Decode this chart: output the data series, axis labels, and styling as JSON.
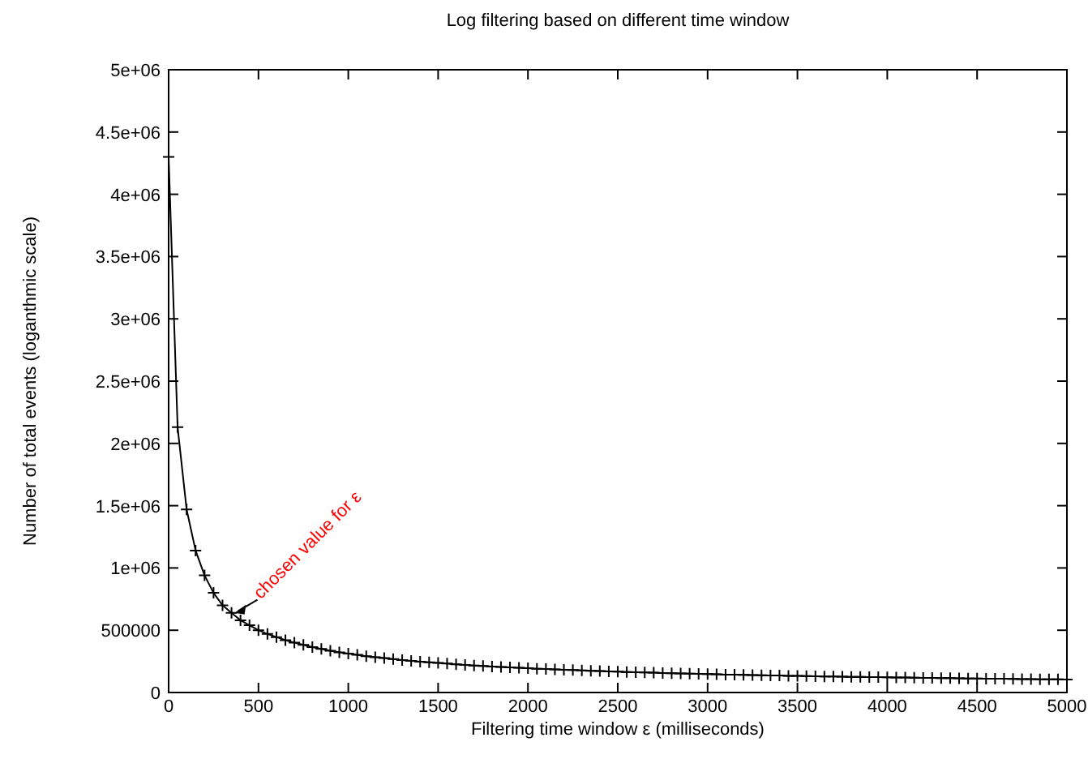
{
  "chart_data": {
    "type": "line",
    "title": "Log filtering based on different time window",
    "xlabel": "Filtering time window ε  (milliseconds)",
    "ylabel": "Number of total events (loganthmic scale)",
    "x": [
      0,
      50,
      100,
      150,
      200,
      250,
      300,
      350,
      400,
      450,
      500,
      550,
      600,
      650,
      700,
      750,
      800,
      850,
      900,
      950,
      1000,
      1050,
      1100,
      1150,
      1200,
      1250,
      1300,
      1350,
      1400,
      1450,
      1500,
      1550,
      1600,
      1650,
      1700,
      1750,
      1800,
      1850,
      1900,
      1950,
      2000,
      2050,
      2100,
      2150,
      2200,
      2250,
      2300,
      2350,
      2400,
      2450,
      2500,
      2550,
      2600,
      2650,
      2700,
      2750,
      2800,
      2850,
      2900,
      2950,
      3000,
      3050,
      3100,
      3150,
      3200,
      3250,
      3300,
      3350,
      3400,
      3450,
      3500,
      3550,
      3600,
      3650,
      3700,
      3750,
      3800,
      3850,
      3900,
      3950,
      4000,
      4050,
      4100,
      4150,
      4200,
      4250,
      4300,
      4350,
      4400,
      4450,
      4500,
      4550,
      4600,
      4650,
      4700,
      4750,
      4800,
      4850,
      4900,
      4950,
      5000
    ],
    "series": [
      {
        "color": "#000000",
        "values": [
          4300000,
          2130000,
          1470000,
          1140000,
          940000,
          800000,
          700000,
          640000,
          580000,
          540000,
          500000,
          470000,
          445000,
          420000,
          400000,
          382000,
          365000,
          350000,
          335000,
          323000,
          312000,
          302000,
          292000,
          284000,
          276000,
          268000,
          261000,
          254000,
          248000,
          242000,
          237000,
          232000,
          227000,
          222000,
          217000,
          213000,
          209000,
          205000,
          202000,
          198000,
          195000,
          191000,
          188000,
          185000,
          182000,
          180000,
          177000,
          174000,
          172000,
          169000,
          167000,
          165000,
          163000,
          161000,
          159000,
          157000,
          155000,
          153000,
          151000,
          150000,
          148000,
          146000,
          144000,
          143000,
          141000,
          140000,
          139000,
          137000,
          136000,
          134000,
          133000,
          132000,
          131000,
          129000,
          128000,
          127000,
          126000,
          125000,
          124000,
          123000,
          122000,
          121000,
          120000,
          119000,
          118000,
          117000,
          116000,
          115000,
          114000,
          113000,
          112000,
          111000,
          110000,
          110000,
          109000,
          108000,
          107000,
          106000,
          105000,
          105000,
          104000
        ]
      }
    ],
    "xlim": [
      0,
      5000
    ],
    "xticks": [
      0,
      500,
      1000,
      1500,
      2000,
      2500,
      3000,
      3500,
      4000,
      4500,
      5000
    ],
    "ylim": [
      0,
      5000000
    ],
    "yticks": [
      0,
      500000,
      {
        "value": 1000000,
        "label": "1e+06"
      },
      {
        "value": 1500000,
        "label": "1.5e+06"
      },
      {
        "value": 2000000,
        "label": "2e+06"
      },
      {
        "value": 2500000,
        "label": "2.5e+06"
      },
      {
        "value": 3000000,
        "label": "3e+06"
      },
      {
        "value": 3500000,
        "label": "3.5e+06"
      },
      {
        "value": 4000000,
        "label": "4e+06"
      },
      {
        "value": 4500000,
        "label": "4.5e+06"
      },
      {
        "value": 5000000,
        "label": "5e+06"
      }
    ],
    "marker": "cross",
    "line_style": "solid",
    "grid": false,
    "annotations": [
      {
        "text": "chosen value for ε",
        "x": 350,
        "y": 640000
      }
    ]
  }
}
